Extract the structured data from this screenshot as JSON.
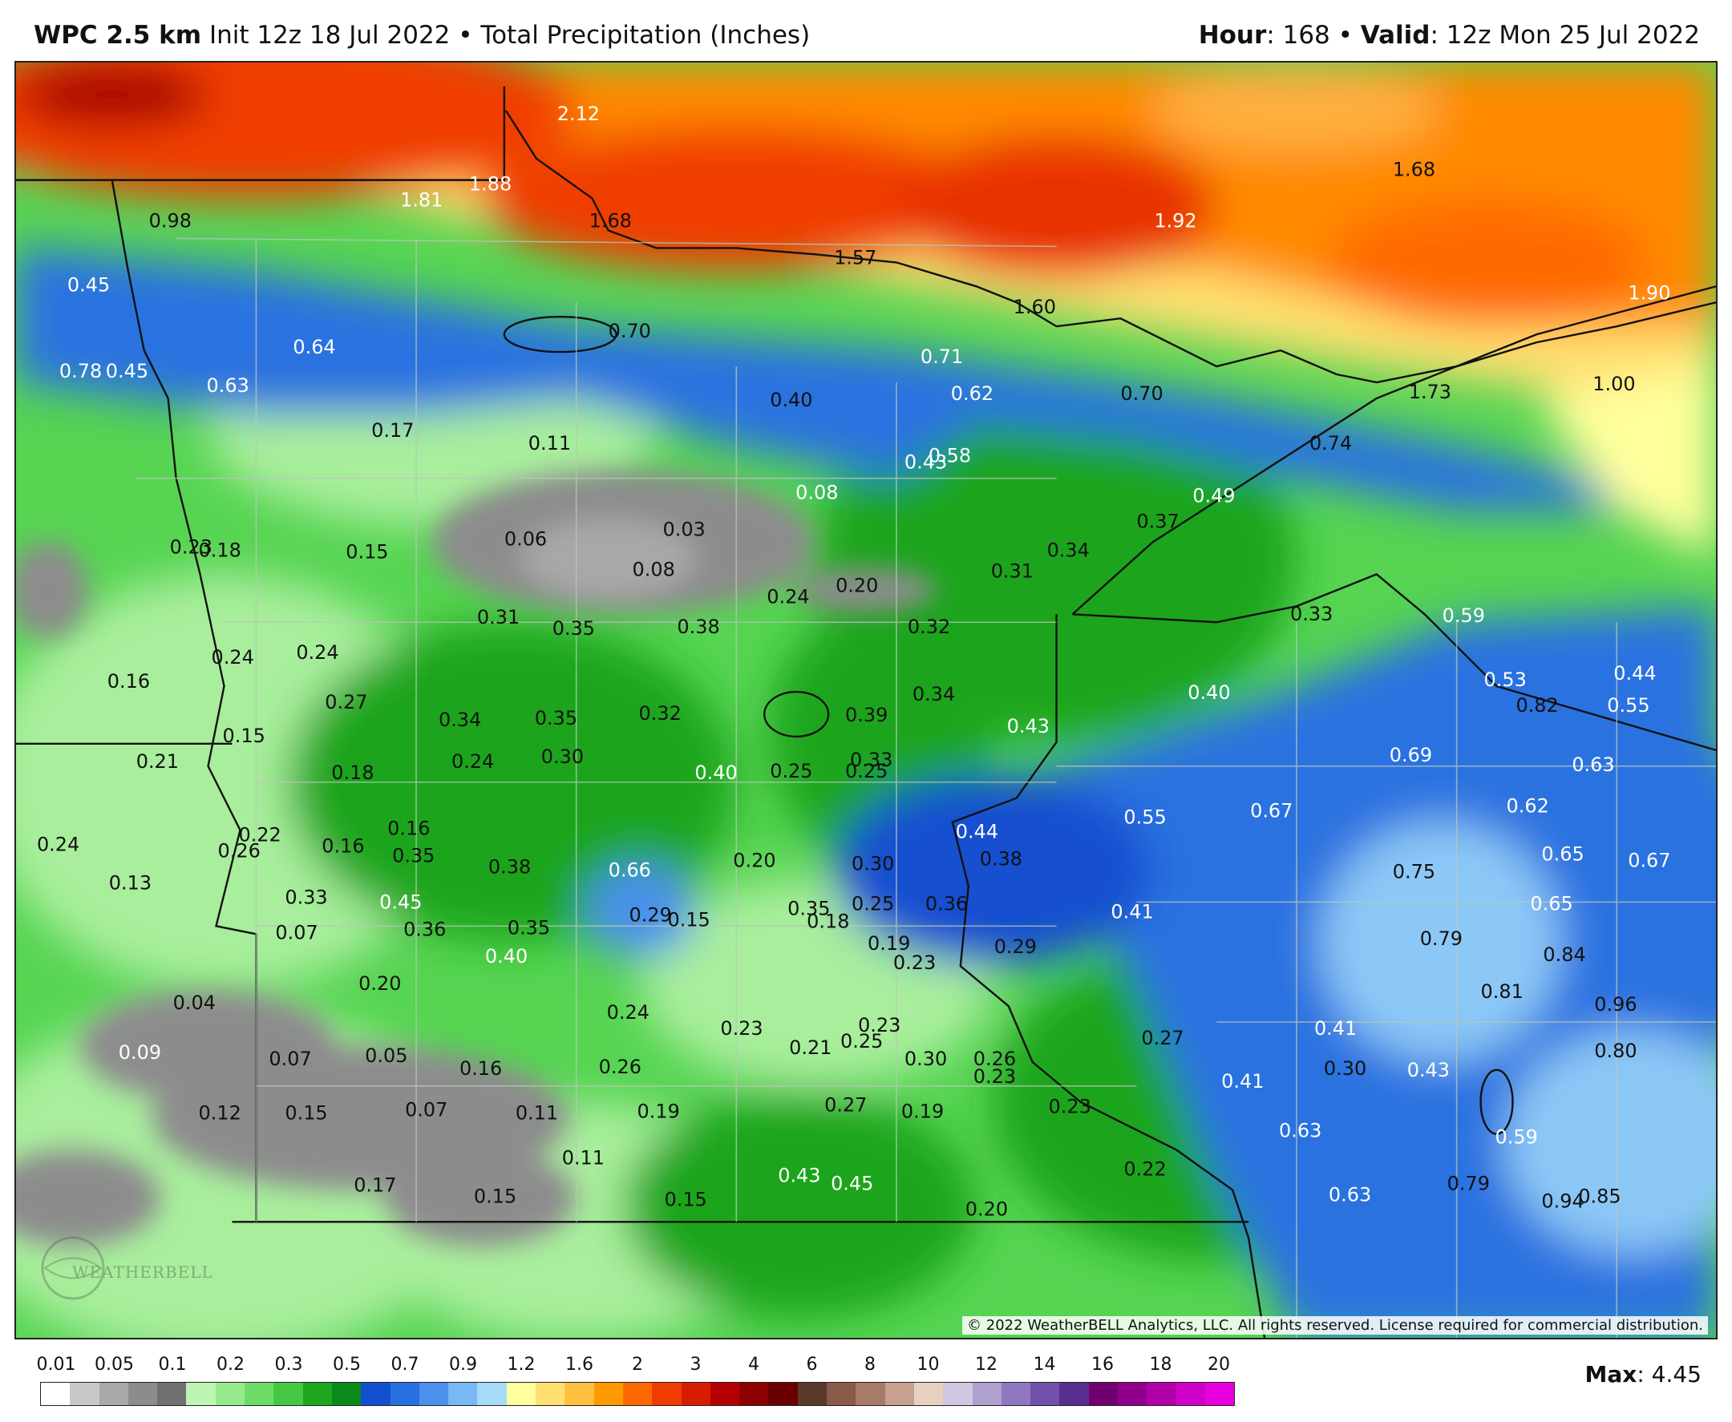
{
  "header": {
    "model": "WPC 2.5 km",
    "init": "Init 12z 18 Jul 2022",
    "separator": "•",
    "product": "Total Precipitation (Inches)",
    "hour_key": "Hour",
    "hour_value": ": 168",
    "valid_key": "Valid",
    "valid_value": ": 12z Mon 25 Jul 2022"
  },
  "copyright": "© 2022 WeatherBELL Analytics, LLC. All rights reserved. License required for commercial distribution.",
  "watermark": "WEATHERBELL",
  "max": {
    "key": "Max",
    "value": ": 4.45"
  },
  "legend": {
    "ticks": [
      "0.01",
      "0.05",
      "0.1",
      "0.2",
      "0.3",
      "0.5",
      "0.7",
      "0.9",
      "1.2",
      "1.6",
      "2",
      "3",
      "4",
      "6",
      "8",
      "10",
      "12",
      "14",
      "16",
      "18",
      "20"
    ],
    "colors": [
      "#ffffff",
      "#c8c8c8",
      "#a8a8a8",
      "#8c8c8c",
      "#707070",
      "#bff5b4",
      "#97ea8b",
      "#6fdc6a",
      "#45c945",
      "#1ea51e",
      "#0a8a1a",
      "#1350d0",
      "#2870e0",
      "#4a90ec",
      "#78b8f4",
      "#a8dafa",
      "#ffffa0",
      "#ffe070",
      "#ffc040",
      "#ff9a00",
      "#ff6a00",
      "#f03c00",
      "#d81c00",
      "#b40000",
      "#8c0000",
      "#6a0000",
      "#5a3a2a",
      "#8a5a4a",
      "#a87a6a",
      "#c8a090",
      "#e8d0c0",
      "#d0c8e0",
      "#b0a0d0",
      "#9078c0",
      "#7050a8",
      "#582e90",
      "#700070",
      "#90008a",
      "#b000a8",
      "#d000c8",
      "#e800e0"
    ]
  },
  "map": {
    "value_labels": [
      {
        "v": "2.12",
        "c": "w"
      },
      {
        "v": "1.81",
        "c": "w"
      },
      {
        "v": "1.88",
        "c": "w"
      },
      {
        "v": "1.68",
        "c": "k"
      },
      {
        "v": "1.57",
        "c": "k"
      },
      {
        "v": "1.68",
        "c": "k"
      },
      {
        "v": "1.92",
        "c": "w"
      },
      {
        "v": "1.60",
        "c": "k"
      },
      {
        "v": "1.90",
        "c": "w"
      },
      {
        "v": "1.73",
        "c": "k"
      },
      {
        "v": "1.00",
        "c": "k"
      },
      {
        "v": "0.98",
        "c": "k"
      },
      {
        "v": "0.45",
        "c": "w"
      },
      {
        "v": "0.78",
        "c": "w"
      },
      {
        "v": "0.45",
        "c": "w"
      },
      {
        "v": "0.64",
        "c": "w"
      },
      {
        "v": "0.63",
        "c": "w"
      },
      {
        "v": "0.70",
        "c": "k"
      },
      {
        "v": "0.71",
        "c": "w"
      },
      {
        "v": "0.62",
        "c": "w"
      },
      {
        "v": "0.70",
        "c": "k"
      },
      {
        "v": "0.74",
        "c": "k"
      },
      {
        "v": "0.40",
        "c": "k"
      },
      {
        "v": "0.17",
        "c": "k"
      },
      {
        "v": "0.11",
        "c": "k"
      },
      {
        "v": "0.43",
        "c": "w"
      },
      {
        "v": "0.58",
        "c": "w"
      },
      {
        "v": "0.08",
        "c": "w"
      },
      {
        "v": "0.49",
        "c": "w"
      },
      {
        "v": "0.37",
        "c": "k"
      },
      {
        "v": "0.03",
        "c": "k"
      },
      {
        "v": "0.06",
        "c": "k"
      },
      {
        "v": "0.23",
        "c": "k"
      },
      {
        "v": "0.18",
        "c": "k"
      },
      {
        "v": "0.15",
        "c": "k"
      },
      {
        "v": "0.08",
        "c": "k"
      },
      {
        "v": "0.34",
        "c": "k"
      },
      {
        "v": "0.31",
        "c": "k"
      },
      {
        "v": "0.24",
        "c": "k"
      },
      {
        "v": "0.20",
        "c": "k"
      },
      {
        "v": "0.33",
        "c": "k"
      },
      {
        "v": "0.59",
        "c": "w"
      },
      {
        "v": "0.31",
        "c": "k"
      },
      {
        "v": "0.35",
        "c": "k"
      },
      {
        "v": "0.38",
        "c": "k"
      },
      {
        "v": "0.32",
        "c": "k"
      },
      {
        "v": "0.24",
        "c": "k"
      },
      {
        "v": "0.24",
        "c": "k"
      },
      {
        "v": "0.16",
        "c": "k"
      },
      {
        "v": "0.53",
        "c": "w"
      },
      {
        "v": "0.44",
        "c": "w"
      },
      {
        "v": "0.34",
        "c": "k"
      },
      {
        "v": "0.40",
        "c": "w"
      },
      {
        "v": "0.27",
        "c": "k"
      },
      {
        "v": "0.34",
        "c": "k"
      },
      {
        "v": "0.35",
        "c": "k"
      },
      {
        "v": "0.32",
        "c": "k"
      },
      {
        "v": "0.39",
        "c": "k"
      },
      {
        "v": "0.82",
        "c": "k"
      },
      {
        "v": "0.55",
        "c": "w"
      },
      {
        "v": "0.43",
        "c": "w"
      },
      {
        "v": "0.15",
        "c": "k"
      },
      {
        "v": "0.21",
        "c": "k"
      },
      {
        "v": "0.24",
        "c": "k"
      },
      {
        "v": "0.30",
        "c": "k"
      },
      {
        "v": "0.18",
        "c": "k"
      },
      {
        "v": "0.33",
        "c": "k"
      },
      {
        "v": "0.69",
        "c": "w"
      },
      {
        "v": "0.63",
        "c": "w"
      },
      {
        "v": "0.40",
        "c": "w"
      },
      {
        "v": "0.25",
        "c": "k"
      },
      {
        "v": "0.25",
        "c": "k"
      },
      {
        "v": "0.67",
        "c": "w"
      },
      {
        "v": "0.55",
        "c": "w"
      },
      {
        "v": "0.62",
        "c": "w"
      },
      {
        "v": "0.24",
        "c": "k"
      },
      {
        "v": "0.22",
        "c": "k"
      },
      {
        "v": "0.26",
        "c": "k"
      },
      {
        "v": "0.16",
        "c": "k"
      },
      {
        "v": "0.16",
        "c": "k"
      },
      {
        "v": "0.35",
        "c": "k"
      },
      {
        "v": "0.44",
        "c": "w"
      },
      {
        "v": "0.65",
        "c": "w"
      },
      {
        "v": "0.67",
        "c": "w"
      },
      {
        "v": "0.38",
        "c": "k"
      },
      {
        "v": "0.66",
        "c": "w"
      },
      {
        "v": "0.20",
        "c": "k"
      },
      {
        "v": "0.30",
        "c": "k"
      },
      {
        "v": "0.38",
        "c": "k"
      },
      {
        "v": "0.75",
        "c": "k"
      },
      {
        "v": "0.13",
        "c": "k"
      },
      {
        "v": "0.33",
        "c": "k"
      },
      {
        "v": "0.45",
        "c": "w"
      },
      {
        "v": "0.36",
        "c": "k"
      },
      {
        "v": "0.65",
        "c": "w"
      },
      {
        "v": "0.29",
        "c": "k"
      },
      {
        "v": "0.35",
        "c": "k"
      },
      {
        "v": "0.41",
        "c": "w"
      },
      {
        "v": "0.25",
        "c": "k"
      },
      {
        "v": "0.07",
        "c": "k"
      },
      {
        "v": "0.36",
        "c": "k"
      },
      {
        "v": "0.35",
        "c": "k"
      },
      {
        "v": "0.15",
        "c": "k"
      },
      {
        "v": "0.18",
        "c": "k"
      },
      {
        "v": "0.79",
        "c": "k"
      },
      {
        "v": "0.19",
        "c": "k"
      },
      {
        "v": "0.40",
        "c": "w"
      },
      {
        "v": "0.29",
        "c": "k"
      },
      {
        "v": "0.84",
        "c": "k"
      },
      {
        "v": "0.20",
        "c": "k"
      },
      {
        "v": "0.23",
        "c": "k"
      },
      {
        "v": "0.81",
        "c": "k"
      },
      {
        "v": "0.04",
        "c": "k"
      },
      {
        "v": "0.24",
        "c": "k"
      },
      {
        "v": "0.23",
        "c": "k"
      },
      {
        "v": "0.41",
        "c": "w"
      },
      {
        "v": "0.96",
        "c": "k"
      },
      {
        "v": "0.23",
        "c": "k"
      },
      {
        "v": "0.09",
        "c": "w"
      },
      {
        "v": "0.07",
        "c": "k"
      },
      {
        "v": "0.05",
        "c": "k"
      },
      {
        "v": "0.21",
        "c": "k"
      },
      {
        "v": "0.25",
        "c": "k"
      },
      {
        "v": "0.27",
        "c": "k"
      },
      {
        "v": "0.80",
        "c": "k"
      },
      {
        "v": "0.16",
        "c": "k"
      },
      {
        "v": "0.26",
        "c": "k"
      },
      {
        "v": "0.30",
        "c": "k"
      },
      {
        "v": "0.26",
        "c": "k"
      },
      {
        "v": "0.30",
        "c": "k"
      },
      {
        "v": "0.43",
        "c": "w"
      },
      {
        "v": "0.23",
        "c": "k"
      },
      {
        "v": "0.41",
        "c": "w"
      },
      {
        "v": "0.12",
        "c": "k"
      },
      {
        "v": "0.15",
        "c": "k"
      },
      {
        "v": "0.07",
        "c": "k"
      },
      {
        "v": "0.11",
        "c": "k"
      },
      {
        "v": "0.19",
        "c": "k"
      },
      {
        "v": "0.27",
        "c": "k"
      },
      {
        "v": "0.19",
        "c": "k"
      },
      {
        "v": "0.23",
        "c": "k"
      },
      {
        "v": "0.63",
        "c": "w"
      },
      {
        "v": "0.59",
        "c": "w"
      },
      {
        "v": "0.11",
        "c": "k"
      },
      {
        "v": "0.17",
        "c": "k"
      },
      {
        "v": "0.15",
        "c": "k"
      },
      {
        "v": "0.15",
        "c": "k"
      },
      {
        "v": "0.43",
        "c": "w"
      },
      {
        "v": "0.45",
        "c": "w"
      },
      {
        "v": "0.20",
        "c": "k"
      },
      {
        "v": "0.22",
        "c": "k"
      },
      {
        "v": "0.63",
        "c": "w"
      },
      {
        "v": "0.79",
        "c": "k"
      },
      {
        "v": "0.94",
        "c": "k"
      },
      {
        "v": "0.85",
        "c": "k"
      }
    ]
  }
}
